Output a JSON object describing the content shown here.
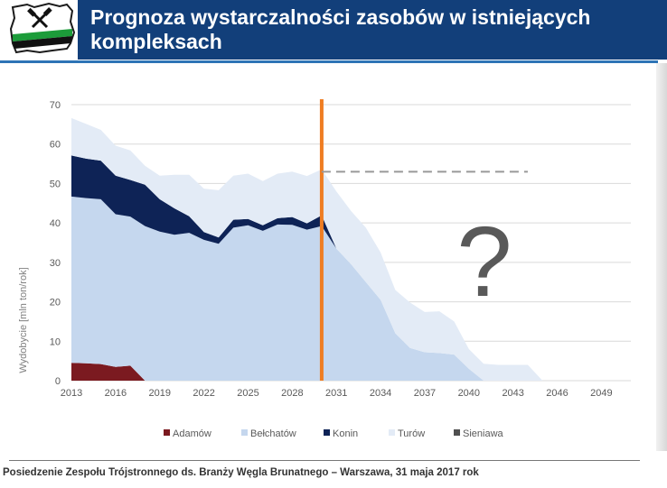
{
  "header": {
    "title": "Prognoza wystarczalności zasobów w istniejących kompleksach"
  },
  "footer": {
    "text": "Posiedzenie Zespołu Trójstronnego ds. Branży Węgla Brunatnego – Warszawa, 31 maja 2017 rok"
  },
  "colors": {
    "title_bg": "#123f7a",
    "rule": "#2d74b6",
    "vline": "#ef7d22",
    "dashed": "#999999"
  },
  "icons": [
    "mining-logo-icon",
    "question-mark-icon"
  ],
  "chart_data": {
    "type": "area",
    "ylabel": "Wydobycie [mln ton/rok]",
    "xlabel": "",
    "ylim": [
      0,
      70
    ],
    "yticks": [
      0,
      10,
      20,
      30,
      40,
      50,
      60,
      70
    ],
    "xlim": [
      2013,
      2051
    ],
    "xticks": [
      "2013",
      "2016",
      "2019",
      "2022",
      "2025",
      "2028",
      "2031",
      "2034",
      "2037",
      "2040",
      "2043",
      "2046",
      "2049"
    ],
    "grid": true,
    "legend_position": "bottom",
    "stacked": true,
    "x": [
      2013,
      2014,
      2015,
      2016,
      2017,
      2018,
      2019,
      2020,
      2021,
      2022,
      2023,
      2024,
      2025,
      2026,
      2027,
      2028,
      2029,
      2030,
      2031,
      2032,
      2033,
      2034,
      2035,
      2036,
      2037,
      2038,
      2039,
      2040,
      2041,
      2042,
      2043,
      2044,
      2045,
      2046,
      2047,
      2048,
      2049,
      2050
    ],
    "series": [
      {
        "name": "Adamów",
        "color": "#7b1a20",
        "values": [
          4.5,
          4.4,
          4.2,
          3.5,
          3.8,
          0,
          0,
          0,
          0,
          0,
          0,
          0,
          0,
          0,
          0,
          0,
          0,
          0,
          0,
          0,
          0,
          0,
          0,
          0,
          0,
          0,
          0,
          0,
          0,
          0,
          0,
          0,
          0,
          0,
          0,
          0,
          0,
          0
        ]
      },
      {
        "name": "Bełchatów",
        "color": "#c5d7ee",
        "values": [
          42.2,
          41.9,
          41.8,
          38.7,
          37.8,
          39.2,
          37.8,
          37.0,
          37.5,
          35.7,
          34.7,
          38.8,
          39.4,
          38.0,
          39.6,
          39.5,
          38.3,
          39.2,
          33.5,
          29.5,
          25.0,
          20.5,
          12.0,
          8.3,
          7.2,
          7.0,
          6.6,
          3.0,
          0,
          0,
          0,
          0,
          0,
          0,
          0,
          0,
          0,
          0
        ]
      },
      {
        "name": "Konin",
        "color": "#0e2356",
        "values": [
          10.4,
          10.0,
          9.8,
          9.8,
          9.3,
          10.5,
          8.2,
          6.7,
          4.2,
          2.0,
          1.6,
          2.0,
          1.6,
          1.4,
          1.6,
          2.0,
          1.6,
          2.7,
          0,
          0,
          0,
          0,
          0,
          0,
          0,
          0,
          0,
          0,
          0,
          0,
          0,
          0,
          0,
          0,
          0,
          0,
          0,
          0
        ]
      },
      {
        "name": "Turów",
        "color": "#e3ebf6",
        "values": [
          9.5,
          8.8,
          7.8,
          7.6,
          7.5,
          4.8,
          6.0,
          8.5,
          10.5,
          11.0,
          12.0,
          11.2,
          11.5,
          11.2,
          11.3,
          11.5,
          12.0,
          11.7,
          14.5,
          13.5,
          13.8,
          12.0,
          11.0,
          11.5,
          10.2,
          10.6,
          8.4,
          5.0,
          4.3,
          4.0,
          4.0,
          4.0,
          0,
          0,
          0,
          0,
          0,
          0
        ]
      },
      {
        "name": "Sieniawa",
        "color": "#505050",
        "values": [
          0,
          0,
          0,
          0,
          0,
          0,
          0,
          0,
          0,
          0,
          0,
          0,
          0,
          0,
          0,
          0,
          0,
          0,
          0,
          0,
          0,
          0,
          0,
          0,
          0,
          0,
          0,
          0,
          0,
          0,
          0,
          0,
          0,
          0,
          0,
          0,
          0,
          0
        ]
      }
    ],
    "vertical_marker_x": 2030,
    "dashed_level": {
      "y": 53,
      "from_x": 2030,
      "to_x": 2044
    },
    "annotation": "?"
  }
}
